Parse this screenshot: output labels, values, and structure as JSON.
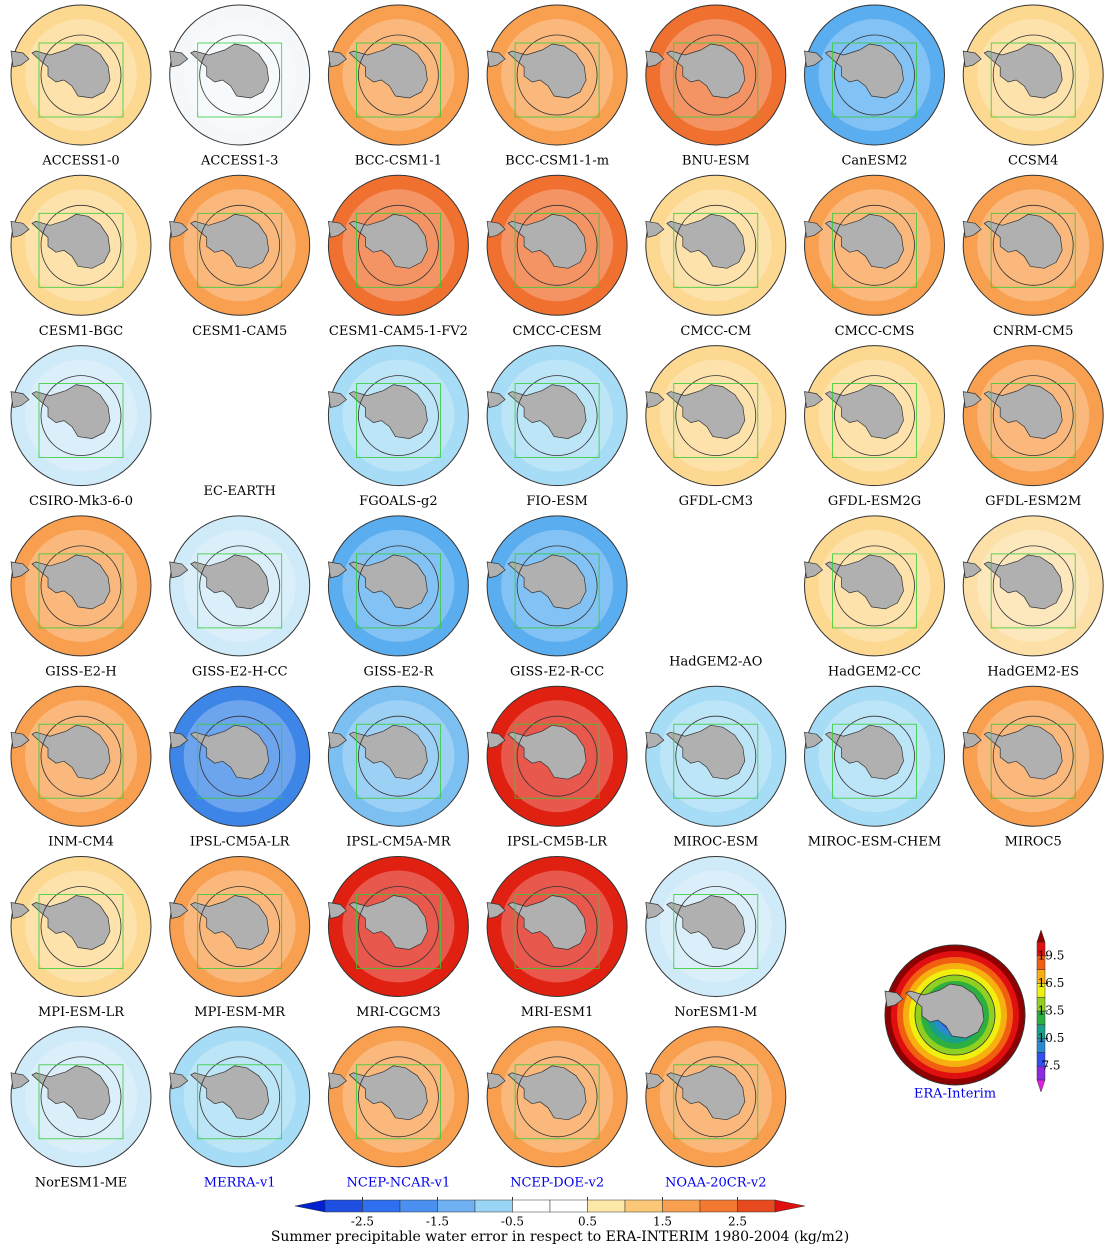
{
  "rows": [
    [
      {
        "name": "ACCESS1-0",
        "color": "#fdd890"
      },
      {
        "name": "ACCESS1-3",
        "color": "#f4f8fb"
      },
      {
        "name": "BCC-CSM1-1",
        "color": "#f9a050"
      },
      {
        "name": "BCC-CSM1-1-m",
        "color": "#f9a050"
      },
      {
        "name": "BNU-ESM",
        "color": "#f07030"
      },
      {
        "name": "CanESM2",
        "color": "#5aaef0"
      },
      {
        "name": "CCSM4",
        "color": "#fdd890"
      }
    ],
    [
      {
        "name": "CESM1-BGC",
        "color": "#fdd890"
      },
      {
        "name": "CESM1-CAM5",
        "color": "#f9a050"
      },
      {
        "name": "CESM1-CAM5-1-FV2",
        "color": "#f07030"
      },
      {
        "name": "CMCC-CESM",
        "color": "#f07030"
      },
      {
        "name": "CMCC-CM",
        "color": "#fdd890"
      },
      {
        "name": "CMCC-CMS",
        "color": "#f9a050"
      },
      {
        "name": "CNRM-CM5",
        "color": "#f9a050"
      }
    ],
    [
      {
        "name": "CSIRO-Mk3-6-0",
        "color": "#cfeaf8"
      },
      {
        "name": "EC-EARTH",
        "map": false
      },
      {
        "name": "FGOALS-g2",
        "color": "#a6dcf5"
      },
      {
        "name": "FIO-ESM",
        "color": "#a6dcf5"
      },
      {
        "name": "GFDL-CM3",
        "color": "#fdd890"
      },
      {
        "name": "GFDL-ESM2G",
        "color": "#fdd890"
      },
      {
        "name": "GFDL-ESM2M",
        "color": "#f9a050"
      }
    ],
    [
      {
        "name": "GISS-E2-H",
        "color": "#f9a050"
      },
      {
        "name": "GISS-E2-H-CC",
        "color": "#cfeaf8"
      },
      {
        "name": "GISS-E2-R",
        "color": "#5aaef0"
      },
      {
        "name": "GISS-E2-R-CC",
        "color": "#5aaef0"
      },
      {
        "name": "HadGEM2-AO",
        "map": false
      },
      {
        "name": "HadGEM2-CC",
        "color": "#fdd890"
      },
      {
        "name": "HadGEM2-ES",
        "color": "#fde0a8"
      }
    ],
    [
      {
        "name": "INM-CM4",
        "color": "#f9a050"
      },
      {
        "name": "IPSL-CM5A-LR",
        "color": "#3d86e8"
      },
      {
        "name": "IPSL-CM5A-MR",
        "color": "#7cc0f2"
      },
      {
        "name": "IPSL-CM5B-LR",
        "color": "#e02010"
      },
      {
        "name": "MIROC-ESM",
        "color": "#a6dcf5"
      },
      {
        "name": "MIROC-ESM-CHEM",
        "color": "#a6dcf5"
      },
      {
        "name": "MIROC5",
        "color": "#f9a050"
      }
    ],
    [
      {
        "name": "MPI-ESM-LR",
        "color": "#fdd890"
      },
      {
        "name": "MPI-ESM-MR",
        "color": "#f9a050"
      },
      {
        "name": "MRI-CGCM3",
        "color": "#e02010"
      },
      {
        "name": "MRI-ESM1",
        "color": "#e02010"
      },
      {
        "name": "NorESM1-M",
        "color": "#cfeaf8"
      }
    ],
    [
      {
        "name": "NorESM1-ME",
        "color": "#cfeaf8"
      },
      {
        "name": "MERRA-v1",
        "color": "#a6dcf5",
        "label_color": "#0000ee"
      },
      {
        "name": "NCEP-NCAR-v1",
        "color": "#f9a050",
        "label_color": "#0000ee"
      },
      {
        "name": "NCEP-DOE-v2",
        "color": "#f9a050",
        "label_color": "#0000ee"
      },
      {
        "name": "NOAA-20CR-v2",
        "color": "#f9a050",
        "label_color": "#0000ee"
      }
    ]
  ],
  "reference": {
    "name": "ERA-Interim",
    "label_color": "#0000ee",
    "colorbar": {
      "range": [
        6,
        21
      ],
      "ticks": [
        19.5,
        16.5,
        13.5,
        10.5,
        7.5
      ],
      "colors": [
        "#8a2be2",
        "#3050f0",
        "#2a8ad0",
        "#1aa08a",
        "#2db040",
        "#90d020",
        "#f0f010",
        "#f8b010",
        "#f06010",
        "#e01010"
      ],
      "under_color": "#e020e0",
      "over_color": "#900000"
    }
  },
  "colorbar": {
    "range": [
      -3,
      3
    ],
    "ticks": [
      -2.5,
      -1.5,
      -0.5,
      0.5,
      1.5,
      2.5
    ],
    "colors": [
      "#1f4fe0",
      "#2e70f0",
      "#4a90f0",
      "#6fb0f2",
      "#9ad4f5",
      "#ffffff",
      "#ffffff",
      "#fde8a8",
      "#fbc878",
      "#f8a050",
      "#f27a30",
      "#e84a20"
    ],
    "under_color": "#0020d0",
    "over_color": "#e01010",
    "title": "Summer precipitable water error in respect to ERA-INTERIM 1980-2004 (kg/m2)"
  }
}
